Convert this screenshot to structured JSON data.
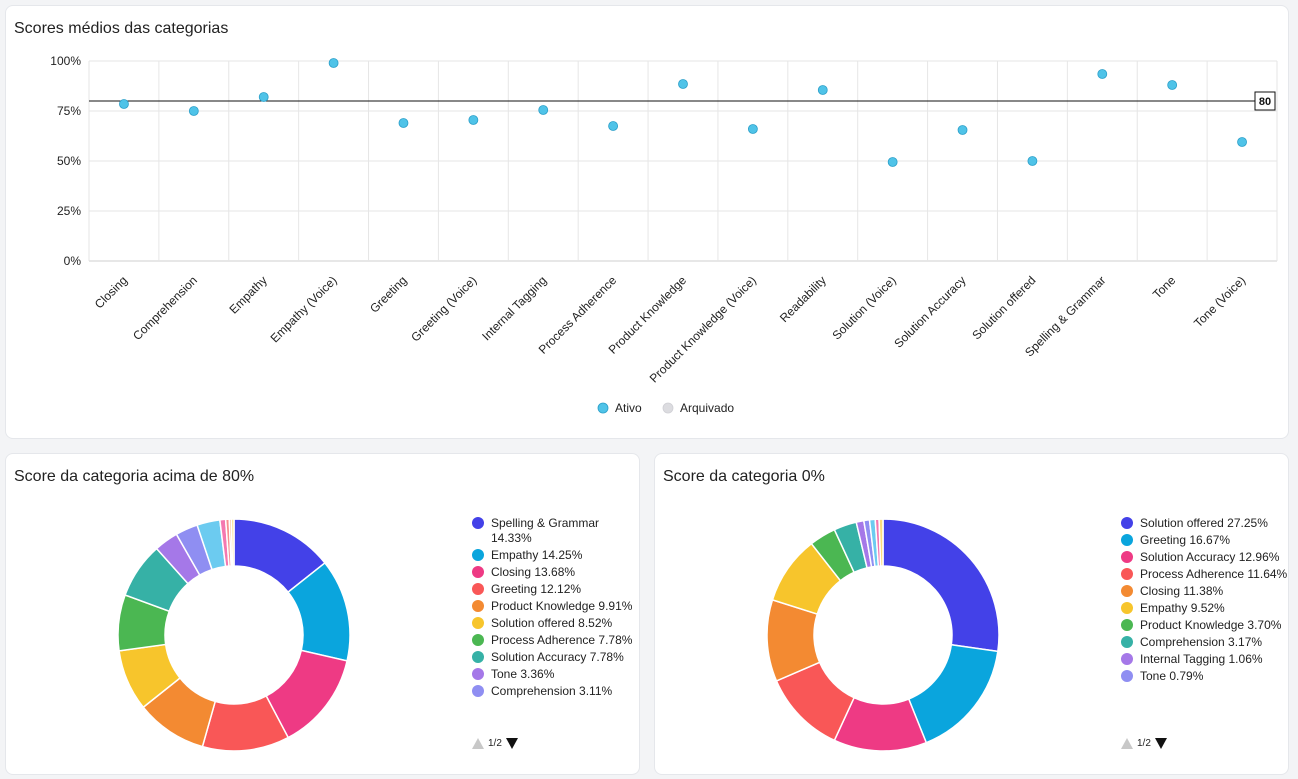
{
  "charts": [
    {
      "title": "Scores médios das categorias",
      "chart_data": {
        "type": "scatter",
        "categories": [
          "Closing",
          "Comprehension",
          "Empathy",
          "Empathy (Voice)",
          "Greeting",
          "Greeting (Voice)",
          "Internal Tagging",
          "Process Adherence",
          "Product Knowledge",
          "Product Knowledge (Voice)",
          "Readability",
          "Solution (Voice)",
          "Solution Accuracy",
          "Solution offered",
          "Spelling & Grammar",
          "Tone",
          "Tone (Voice)"
        ],
        "series": [
          {
            "name": "Ativo",
            "color": "#4fc3e8",
            "values": [
              78.5,
              75,
              82,
              99,
              69,
              70.5,
              75.5,
              67.5,
              88.5,
              66,
              85.5,
              49.5,
              65.5,
              50,
              93.5,
              88,
              59.5
            ]
          },
          {
            "name": "Arquivado",
            "color": "#dcdce0",
            "values": []
          }
        ],
        "yticks": [
          "100%",
          "75%",
          "50%",
          "25%",
          "0%"
        ],
        "ylim": [
          0,
          100
        ],
        "threshold": 80,
        "threshold_label": "80",
        "grid": true,
        "legend": "bottom-center"
      }
    },
    {
      "title": "Score da categoria acima de 80%",
      "chart_data": {
        "type": "pie",
        "donut": true,
        "legend": "right",
        "slices": [
          {
            "label": "Spelling & Grammar",
            "pct": "14.33%",
            "value": 14.33,
            "color": "#4341e8"
          },
          {
            "label": "Empathy",
            "pct": "14.25%",
            "value": 14.25,
            "color": "#0aa5dd"
          },
          {
            "label": "Closing",
            "pct": "13.68%",
            "value": 13.68,
            "color": "#ee3a84"
          },
          {
            "label": "Greeting",
            "pct": "12.12%",
            "value": 12.12,
            "color": "#f95757"
          },
          {
            "label": "Product Knowledge",
            "pct": "9.91%",
            "value": 9.91,
            "color": "#f38a32"
          },
          {
            "label": "Solution offered",
            "pct": "8.52%",
            "value": 8.52,
            "color": "#f7c52c"
          },
          {
            "label": "Process Adherence",
            "pct": "7.78%",
            "value": 7.78,
            "color": "#4bb752"
          },
          {
            "label": "Solution Accuracy",
            "pct": "7.78%",
            "value": 7.78,
            "color": "#36b1a6"
          },
          {
            "label": "Tone",
            "pct": "3.36%",
            "value": 3.36,
            "color": "#a578e8"
          },
          {
            "label": "Comprehension",
            "pct": "3.11%",
            "value": 3.11,
            "color": "#8f8ef2"
          },
          {
            "value": 3.2,
            "color": "#6ccbf0"
          },
          {
            "value": 0.8,
            "color": "#f478b0"
          },
          {
            "value": 0.5,
            "color": "#f78f8f"
          },
          {
            "value": 0.3,
            "color": "#f7b27a"
          },
          {
            "value": 0.35,
            "color": "#fadb7a"
          }
        ],
        "page": "1/2"
      }
    },
    {
      "title": "Score da categoria 0%",
      "chart_data": {
        "type": "pie",
        "donut": true,
        "legend": "right",
        "slices": [
          {
            "label": "Solution offered",
            "pct": "27.25%",
            "value": 27.25,
            "color": "#4341e8"
          },
          {
            "label": "Greeting",
            "pct": "16.67%",
            "value": 16.67,
            "color": "#0aa5dd"
          },
          {
            "label": "Solution Accuracy",
            "pct": "12.96%",
            "value": 12.96,
            "color": "#ee3a84"
          },
          {
            "label": "Process Adherence",
            "pct": "11.64%",
            "value": 11.64,
            "color": "#f95757"
          },
          {
            "label": "Closing",
            "pct": "11.38%",
            "value": 11.38,
            "color": "#f38a32"
          },
          {
            "label": "Empathy",
            "pct": "9.52%",
            "value": 9.52,
            "color": "#f7c52c"
          },
          {
            "label": "Product Knowledge",
            "pct": "3.70%",
            "value": 3.7,
            "color": "#4bb752"
          },
          {
            "label": "Comprehension",
            "pct": "3.17%",
            "value": 3.17,
            "color": "#36b1a6"
          },
          {
            "label": "Internal Tagging",
            "pct": "1.06%",
            "value": 1.06,
            "color": "#a578e8"
          },
          {
            "label": "Tone",
            "pct": "0.79%",
            "value": 0.79,
            "color": "#8f8ef2"
          },
          {
            "value": 0.79,
            "color": "#6ccbf0"
          },
          {
            "value": 0.53,
            "color": "#f478b0"
          },
          {
            "value": 0.54,
            "color": "#fadb7a"
          }
        ],
        "page": "1/2"
      }
    }
  ]
}
